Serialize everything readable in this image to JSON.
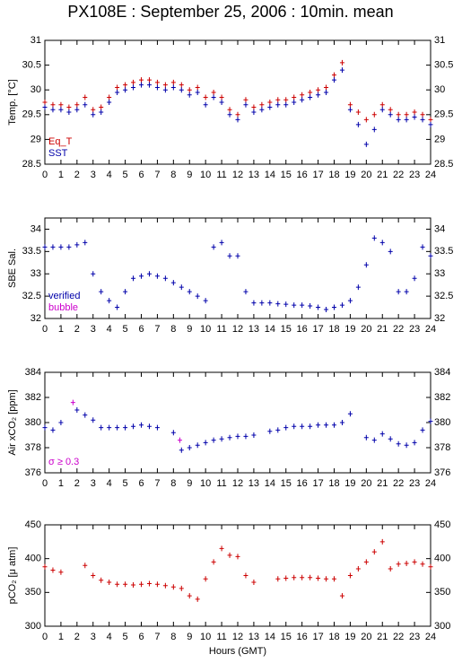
{
  "chart_data": [
    {
      "type": "scatter",
      "title": "PX108E : September 25, 2006 : 10min. mean",
      "y_label": "Temp. [°C]",
      "xlim": [
        0,
        24
      ],
      "xticks": [
        0,
        1,
        2,
        3,
        4,
        5,
        6,
        7,
        8,
        9,
        10,
        11,
        12,
        13,
        14,
        15,
        16,
        17,
        18,
        19,
        20,
        21,
        22,
        23,
        24
      ],
      "ylim": [
        28.5,
        31
      ],
      "yticks": [
        28.5,
        29,
        29.5,
        30,
        30.5,
        31
      ],
      "series": [
        {
          "name": "Eq_T",
          "color": "#cc0000",
          "x": [
            0,
            0.5,
            1,
            1.5,
            2,
            2.5,
            3,
            3.5,
            4,
            4.5,
            5,
            5.5,
            6,
            6.5,
            7,
            7.5,
            8,
            8.5,
            9,
            9.5,
            10,
            10.5,
            11,
            11.5,
            12,
            12.5,
            13,
            13.5,
            14,
            14.5,
            15,
            15.5,
            16,
            16.5,
            17,
            17.5,
            18,
            18.5,
            19,
            19.5,
            20,
            20.5,
            21,
            21.5,
            22,
            22.5,
            23,
            23.5,
            24
          ],
          "values": [
            29.75,
            29.7,
            29.7,
            29.65,
            29.7,
            29.85,
            29.6,
            29.65,
            29.85,
            30.05,
            30.1,
            30.15,
            30.2,
            30.2,
            30.15,
            30.1,
            30.15,
            30.1,
            30.0,
            30.05,
            29.85,
            29.95,
            29.85,
            29.6,
            29.5,
            29.8,
            29.65,
            29.7,
            29.75,
            29.8,
            29.8,
            29.85,
            29.9,
            29.95,
            30.0,
            30.05,
            30.3,
            30.55,
            29.7,
            29.55,
            29.4,
            29.5,
            29.7,
            29.6,
            29.5,
            29.5,
            29.55,
            29.5,
            29.4
          ]
        },
        {
          "name": "SST",
          "color": "#0000aa",
          "x": [
            0,
            0.5,
            1,
            1.5,
            2,
            2.5,
            3,
            3.5,
            4,
            4.5,
            5,
            5.5,
            6,
            6.5,
            7,
            7.5,
            8,
            8.5,
            9,
            9.5,
            10,
            10.5,
            11,
            11.5,
            12,
            12.5,
            13,
            13.5,
            14,
            14.5,
            15,
            15.5,
            16,
            16.5,
            17,
            17.5,
            18,
            18.5,
            19,
            19.5,
            20,
            20.5,
            21,
            21.5,
            22,
            22.5,
            23,
            23.5,
            24
          ],
          "values": [
            29.65,
            29.6,
            29.6,
            29.55,
            29.6,
            29.7,
            29.5,
            29.55,
            29.75,
            29.95,
            30.0,
            30.05,
            30.1,
            30.1,
            30.05,
            30.0,
            30.05,
            30.0,
            29.9,
            29.95,
            29.7,
            29.85,
            29.75,
            29.5,
            29.4,
            29.7,
            29.55,
            29.6,
            29.65,
            29.7,
            29.7,
            29.75,
            29.8,
            29.85,
            29.9,
            29.95,
            30.2,
            30.4,
            29.6,
            29.3,
            28.9,
            29.2,
            29.6,
            29.5,
            29.4,
            29.4,
            29.45,
            29.4,
            29.3
          ]
        }
      ]
    },
    {
      "type": "scatter",
      "y_label": "SBE Sal.",
      "xlim": [
        0,
        24
      ],
      "xticks": [
        0,
        1,
        2,
        3,
        4,
        5,
        6,
        7,
        8,
        9,
        10,
        11,
        12,
        13,
        14,
        15,
        16,
        17,
        18,
        19,
        20,
        21,
        22,
        23,
        24
      ],
      "ylim": [
        32,
        34.25
      ],
      "yticks": [
        32,
        32.5,
        33,
        33.5,
        34
      ],
      "series": [
        {
          "name": "verified",
          "color": "#0000aa",
          "x": [
            0,
            0.5,
            1,
            1.5,
            2,
            2.5,
            3,
            3.5,
            4,
            4.5,
            5,
            5.5,
            6,
            6.5,
            7,
            7.5,
            8,
            8.5,
            9,
            9.5,
            10,
            10.5,
            11,
            11.5,
            12,
            12.5,
            13,
            13.5,
            14,
            14.5,
            15,
            15.5,
            16,
            16.5,
            17,
            17.5,
            18,
            18.5,
            19,
            19.5,
            20,
            20.5,
            21,
            21.5,
            22,
            22.5,
            23,
            23.5,
            24
          ],
          "values": [
            33.6,
            33.6,
            33.6,
            33.6,
            33.65,
            33.7,
            33.0,
            32.6,
            32.4,
            32.25,
            32.6,
            32.9,
            32.95,
            33.0,
            32.95,
            32.9,
            32.8,
            32.7,
            32.6,
            32.5,
            32.4,
            33.6,
            33.7,
            33.4,
            33.4,
            32.6,
            32.35,
            32.35,
            32.35,
            32.33,
            32.32,
            32.3,
            32.3,
            32.28,
            32.25,
            32.2,
            32.25,
            32.3,
            32.4,
            32.7,
            33.2,
            33.8,
            33.7,
            33.5,
            32.6,
            32.6,
            32.9,
            33.6,
            33.4
          ]
        },
        {
          "name": "bubble",
          "color": "#cc00cc",
          "x": [],
          "values": []
        }
      ]
    },
    {
      "type": "scatter",
      "y_label": "Air xCO₂ [ppm]",
      "xlim": [
        0,
        24
      ],
      "xticks": [
        0,
        1,
        2,
        3,
        4,
        5,
        6,
        7,
        8,
        9,
        10,
        11,
        12,
        13,
        14,
        15,
        16,
        17,
        18,
        19,
        20,
        21,
        22,
        23,
        24
      ],
      "ylim": [
        376,
        384
      ],
      "yticks": [
        376,
        378,
        380,
        382,
        384
      ],
      "series": [
        {
          "color": "#0000aa",
          "x": [
            0,
            0.5,
            1,
            1.5,
            2,
            2.5,
            3,
            3.5,
            4,
            4.5,
            5,
            5.5,
            6,
            6.5,
            7,
            7.5,
            8,
            8.5,
            9,
            9.5,
            10,
            10.5,
            11,
            11.5,
            12,
            12.5,
            13,
            13.5,
            14,
            14.5,
            15,
            15.5,
            16,
            16.5,
            17,
            17.5,
            18,
            18.5,
            19,
            19.5,
            20,
            20.5,
            21,
            21.5,
            22,
            22.5,
            23,
            23.5,
            24
          ],
          "values": [
            379.6,
            379.4,
            380.0,
            null,
            381.0,
            380.6,
            380.2,
            379.6,
            379.6,
            379.6,
            379.6,
            379.7,
            379.8,
            379.7,
            379.6,
            null,
            379.2,
            377.8,
            378.0,
            378.2,
            378.4,
            378.6,
            378.7,
            378.8,
            378.9,
            378.9,
            379.0,
            null,
            379.3,
            379.4,
            379.6,
            379.7,
            379.7,
            379.7,
            379.8,
            379.8,
            379.8,
            380.0,
            380.7,
            null,
            378.8,
            378.6,
            379.1,
            378.7,
            378.3,
            378.2,
            378.4,
            379.4,
            380.1
          ]
        },
        {
          "name": "σ ≥ 0.3",
          "color": "#cc00cc",
          "x": [
            1.75,
            8.4
          ],
          "values": [
            381.6,
            378.6
          ]
        }
      ]
    },
    {
      "type": "scatter",
      "y_label": "pCO₂ [μ atm]",
      "x_label": "Hours (GMT)",
      "xlim": [
        0,
        24
      ],
      "xticks": [
        0,
        1,
        2,
        3,
        4,
        5,
        6,
        7,
        8,
        9,
        10,
        11,
        12,
        13,
        14,
        15,
        16,
        17,
        18,
        19,
        20,
        21,
        22,
        23,
        24
      ],
      "ylim": [
        300,
        450
      ],
      "yticks": [
        300,
        350,
        400,
        450
      ],
      "series": [
        {
          "color": "#cc0000",
          "x": [
            0,
            0.5,
            1,
            1.5,
            2,
            2.5,
            3,
            3.5,
            4,
            4.5,
            5,
            5.5,
            6,
            6.5,
            7,
            7.5,
            8,
            8.5,
            9,
            9.5,
            10,
            10.5,
            11,
            11.5,
            12,
            12.5,
            13,
            13.5,
            14,
            14.5,
            15,
            15.5,
            16,
            16.5,
            17,
            17.5,
            18,
            18.5,
            19,
            19.5,
            20,
            20.5,
            21,
            21.5,
            22,
            22.5,
            23,
            23.5,
            24
          ],
          "values": [
            388,
            383,
            380,
            null,
            null,
            390,
            375,
            368,
            365,
            362,
            362,
            361,
            362,
            363,
            362,
            360,
            358,
            356,
            345,
            340,
            370,
            395,
            415,
            405,
            403,
            375,
            365,
            null,
            null,
            370,
            371,
            372,
            372,
            372,
            371,
            370,
            370,
            345,
            375,
            385,
            395,
            410,
            425,
            385,
            392,
            393,
            395,
            392,
            388
          ]
        }
      ]
    }
  ]
}
